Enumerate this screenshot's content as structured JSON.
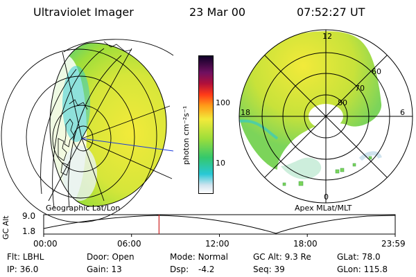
{
  "header": {
    "title": "Ultraviolet Imager",
    "date": "23 Mar 00",
    "time": "07:52:27 UT"
  },
  "colorbar": {
    "unit_label": "photon cm⁻²s⁻¹",
    "ticks": [
      "100",
      "10"
    ]
  },
  "geo_panel": {
    "label": "Geographic Lat/Lon"
  },
  "polar_panel": {
    "label": "Apex MLat/MLT",
    "lat_labels": [
      "60",
      "70",
      "80"
    ],
    "mlt_labels": [
      "12",
      "18",
      "6",
      "0"
    ]
  },
  "altitude_plot": {
    "axis_label": "GC Alt",
    "y_ticks": [
      "9.0",
      "1.8"
    ],
    "x_ticks": [
      "00:00",
      "06:00",
      "12:00",
      "18:00",
      "23:59"
    ],
    "current_time_hours": 7.87
  },
  "status": [
    [
      {
        "label": "Flt:",
        "value": "LBHL"
      },
      {
        "label": "Door:",
        "value": "Open"
      },
      {
        "label": "Mode:",
        "value": "Normal"
      },
      {
        "label": "GC Alt:",
        "value": "9.3 Re"
      },
      {
        "label": "GLat:",
        "value": "78.0"
      }
    ],
    [
      {
        "label": "IP:",
        "value": "36.0"
      },
      {
        "label": "Gain:",
        "value": "13"
      },
      {
        "label": "Dsp:",
        "value": "-4.2"
      },
      {
        "label": "Seq:",
        "value": "39"
      },
      {
        "label": "GLon:",
        "value": "115.8"
      }
    ]
  ],
  "colors": {
    "colorbar_stops": [
      "#ffffff",
      "#cfe3ee",
      "#28c8d6",
      "#34c86c",
      "#9ede3a",
      "#f2ea3a",
      "#ff9a18",
      "#ff3a18",
      "#b0103a",
      "#701060",
      "#100028"
    ],
    "marker": "#cc2222"
  }
}
